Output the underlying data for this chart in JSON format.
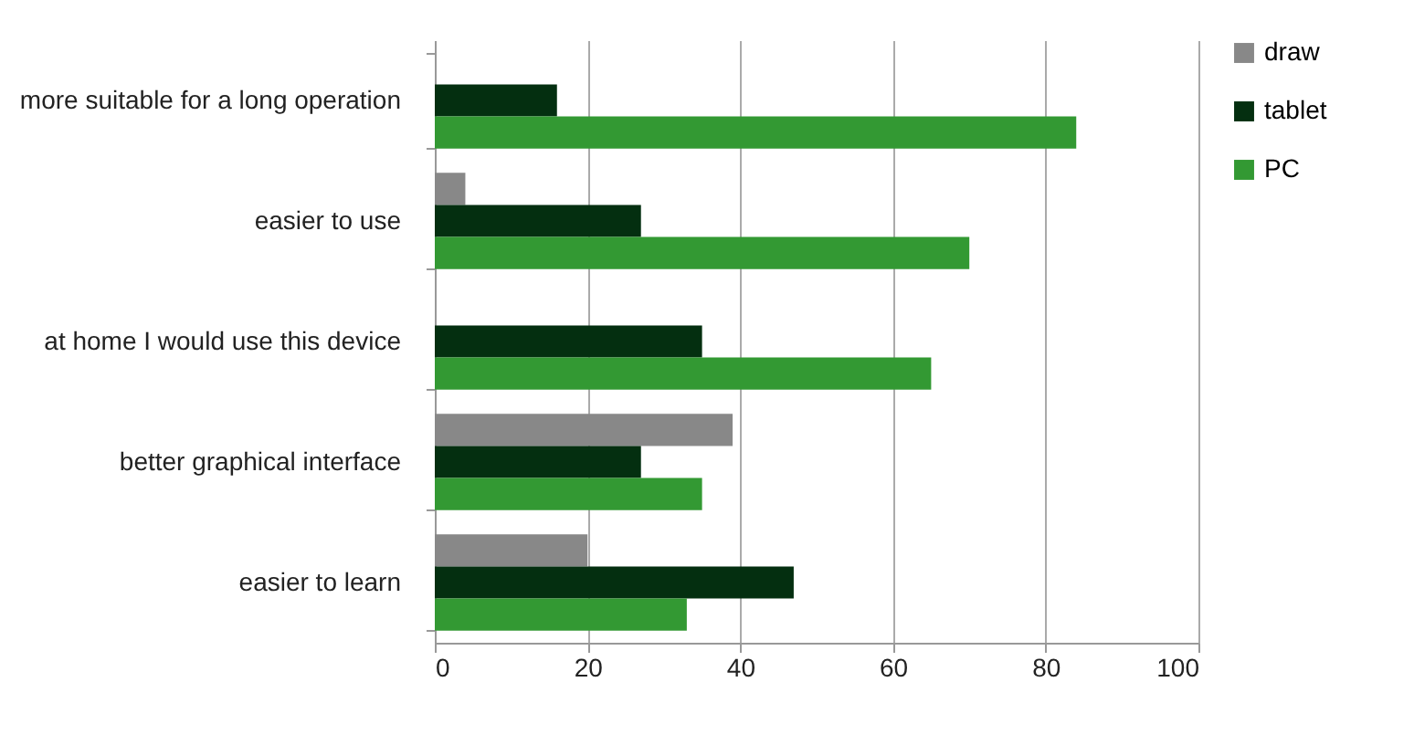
{
  "chart_data": {
    "type": "bar",
    "orientation": "horizontal",
    "categories": [
      "more suitable for a long operation",
      "easier to use",
      "at home I would use this device",
      "better graphical interface",
      "easier to learn"
    ],
    "series": [
      {
        "name": "draw",
        "color": "#888888",
        "values": [
          null,
          4,
          null,
          39,
          20
        ]
      },
      {
        "name": "tablet",
        "color": "#042f10",
        "values": [
          16,
          27,
          35,
          27,
          47
        ]
      },
      {
        "name": "PC",
        "color": "#339933",
        "values": [
          84,
          70,
          65,
          35,
          33
        ]
      }
    ],
    "xlim": [
      0,
      100
    ],
    "xticks": [
      0,
      20,
      40,
      60,
      80,
      100
    ],
    "grid": "x",
    "legend": "right"
  }
}
